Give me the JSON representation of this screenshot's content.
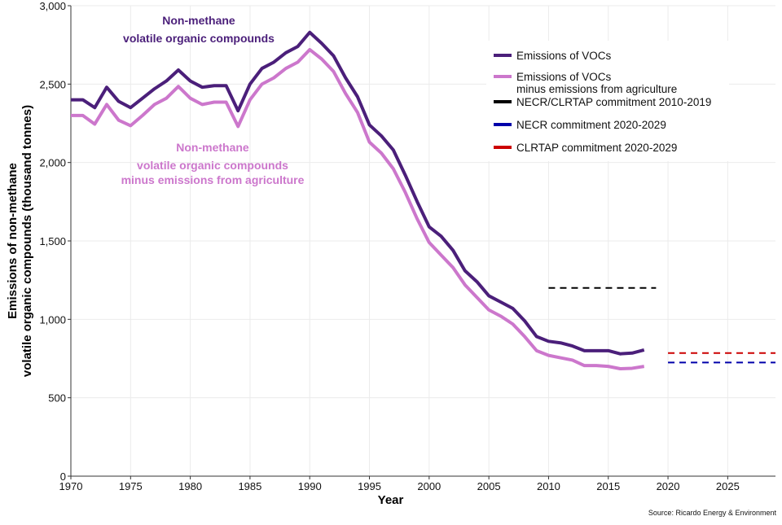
{
  "chart_data": {
    "type": "line",
    "title": "",
    "xlabel": "Year",
    "ylabel": [
      "Emissions of non-methane",
      "volatile organic compounds (thousand tonnes)"
    ],
    "xlim": [
      1970,
      2029
    ],
    "ylim": [
      0,
      3000
    ],
    "xticks": [
      1970,
      1975,
      1980,
      1985,
      1990,
      1995,
      2000,
      2005,
      2010,
      2015,
      2020,
      2025
    ],
    "yticks": [
      0,
      500,
      1000,
      1500,
      2000,
      2500,
      3000
    ],
    "ytick_labels": [
      "0",
      "500",
      "1,000",
      "1,500",
      "2,000",
      "2,500",
      "3,000"
    ],
    "grid": true,
    "legend_placement": "top-right",
    "x": [
      1970,
      1971,
      1972,
      1973,
      1974,
      1975,
      1976,
      1977,
      1978,
      1979,
      1980,
      1981,
      1982,
      1983,
      1984,
      1985,
      1986,
      1987,
      1988,
      1989,
      1990,
      1991,
      1992,
      1993,
      1994,
      1995,
      1996,
      1997,
      1998,
      1999,
      2000,
      2001,
      2002,
      2003,
      2004,
      2005,
      2006,
      2007,
      2008,
      2009,
      2010,
      2011,
      2012,
      2013,
      2014,
      2015,
      2016,
      2017,
      2018
    ],
    "series": [
      {
        "name": "Emissions of VOCs",
        "color": "#4b1f7a",
        "values": [
          2400,
          2400,
          2350,
          2480,
          2390,
          2350,
          2410,
          2470,
          2520,
          2590,
          2520,
          2480,
          2490,
          2490,
          2330,
          2500,
          2600,
          2640,
          2700,
          2740,
          2830,
          2760,
          2680,
          2540,
          2420,
          2240,
          2170,
          2080,
          1920,
          1750,
          1590,
          1530,
          1440,
          1310,
          1240,
          1150,
          1110,
          1070,
          990,
          890,
          860,
          850,
          830,
          800,
          800,
          800,
          780,
          785,
          805
        ]
      },
      {
        "name": "Emissions of VOCs\nminus emissions from agriculture",
        "color": "#cc77cc",
        "values": [
          2300,
          2300,
          2245,
          2370,
          2270,
          2235,
          2300,
          2370,
          2410,
          2485,
          2410,
          2370,
          2385,
          2385,
          2230,
          2400,
          2500,
          2540,
          2600,
          2640,
          2720,
          2660,
          2580,
          2440,
          2320,
          2130,
          2060,
          1960,
          1810,
          1640,
          1490,
          1410,
          1330,
          1220,
          1140,
          1060,
          1020,
          970,
          890,
          800,
          770,
          755,
          740,
          705,
          705,
          700,
          685,
          688,
          700
        ]
      }
    ],
    "commitments": [
      {
        "name": "NECR/CLRTAP commitment 2010-2019",
        "color": "#000000",
        "from": 2010,
        "to": 2019,
        "value": 1200
      },
      {
        "name": "NECR commitment 2020-2029",
        "color": "#0000aa",
        "from": 2020,
        "to": 2029,
        "value": 725
      },
      {
        "name": "CLRTAP commitment 2020-2029",
        "color": "#cc0000",
        "from": 2020,
        "to": 2029,
        "value": 785
      }
    ],
    "annotations": [
      {
        "lines": [
          "Non-methane",
          "volatile organic compounds"
        ],
        "color": "#4b1f7a"
      },
      {
        "lines": [
          "Non-methane",
          "volatile organic compounds",
          "minus emissions from agriculture"
        ],
        "color": "#cc77cc"
      }
    ],
    "source": "Source: Ricardo Energy & Environment"
  }
}
